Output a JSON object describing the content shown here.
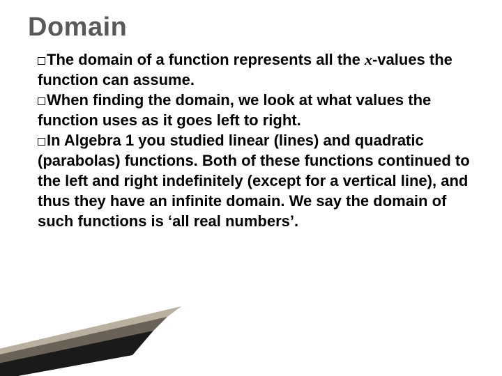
{
  "title": {
    "text": "Domain",
    "color": "#595959",
    "fontsize": 38
  },
  "body": {
    "fontsize": 22,
    "color": "#000000",
    "checkbox_size": 11,
    "bullets": [
      {
        "pre": "The",
        "x": "x",
        "post": "-values the function can assume.",
        "mid": " domain of a function represents all the "
      },
      {
        "text": "When finding the domain, we look at what values the function uses as it goes left to right."
      },
      {
        "text": "In Algebra 1 you studied linear (lines) and quadratic (parabolas) functions.  Both of these functions continued to the left and right indefinitely (except for a vertical line),  and thus they have an infinite domain.  We say the domain of such functions is ‘all real numbers’."
      }
    ]
  },
  "deco": {
    "colors": {
      "dark": "#1a1a1a",
      "mid": "#6b6257",
      "light": "#b9b0a0"
    }
  }
}
